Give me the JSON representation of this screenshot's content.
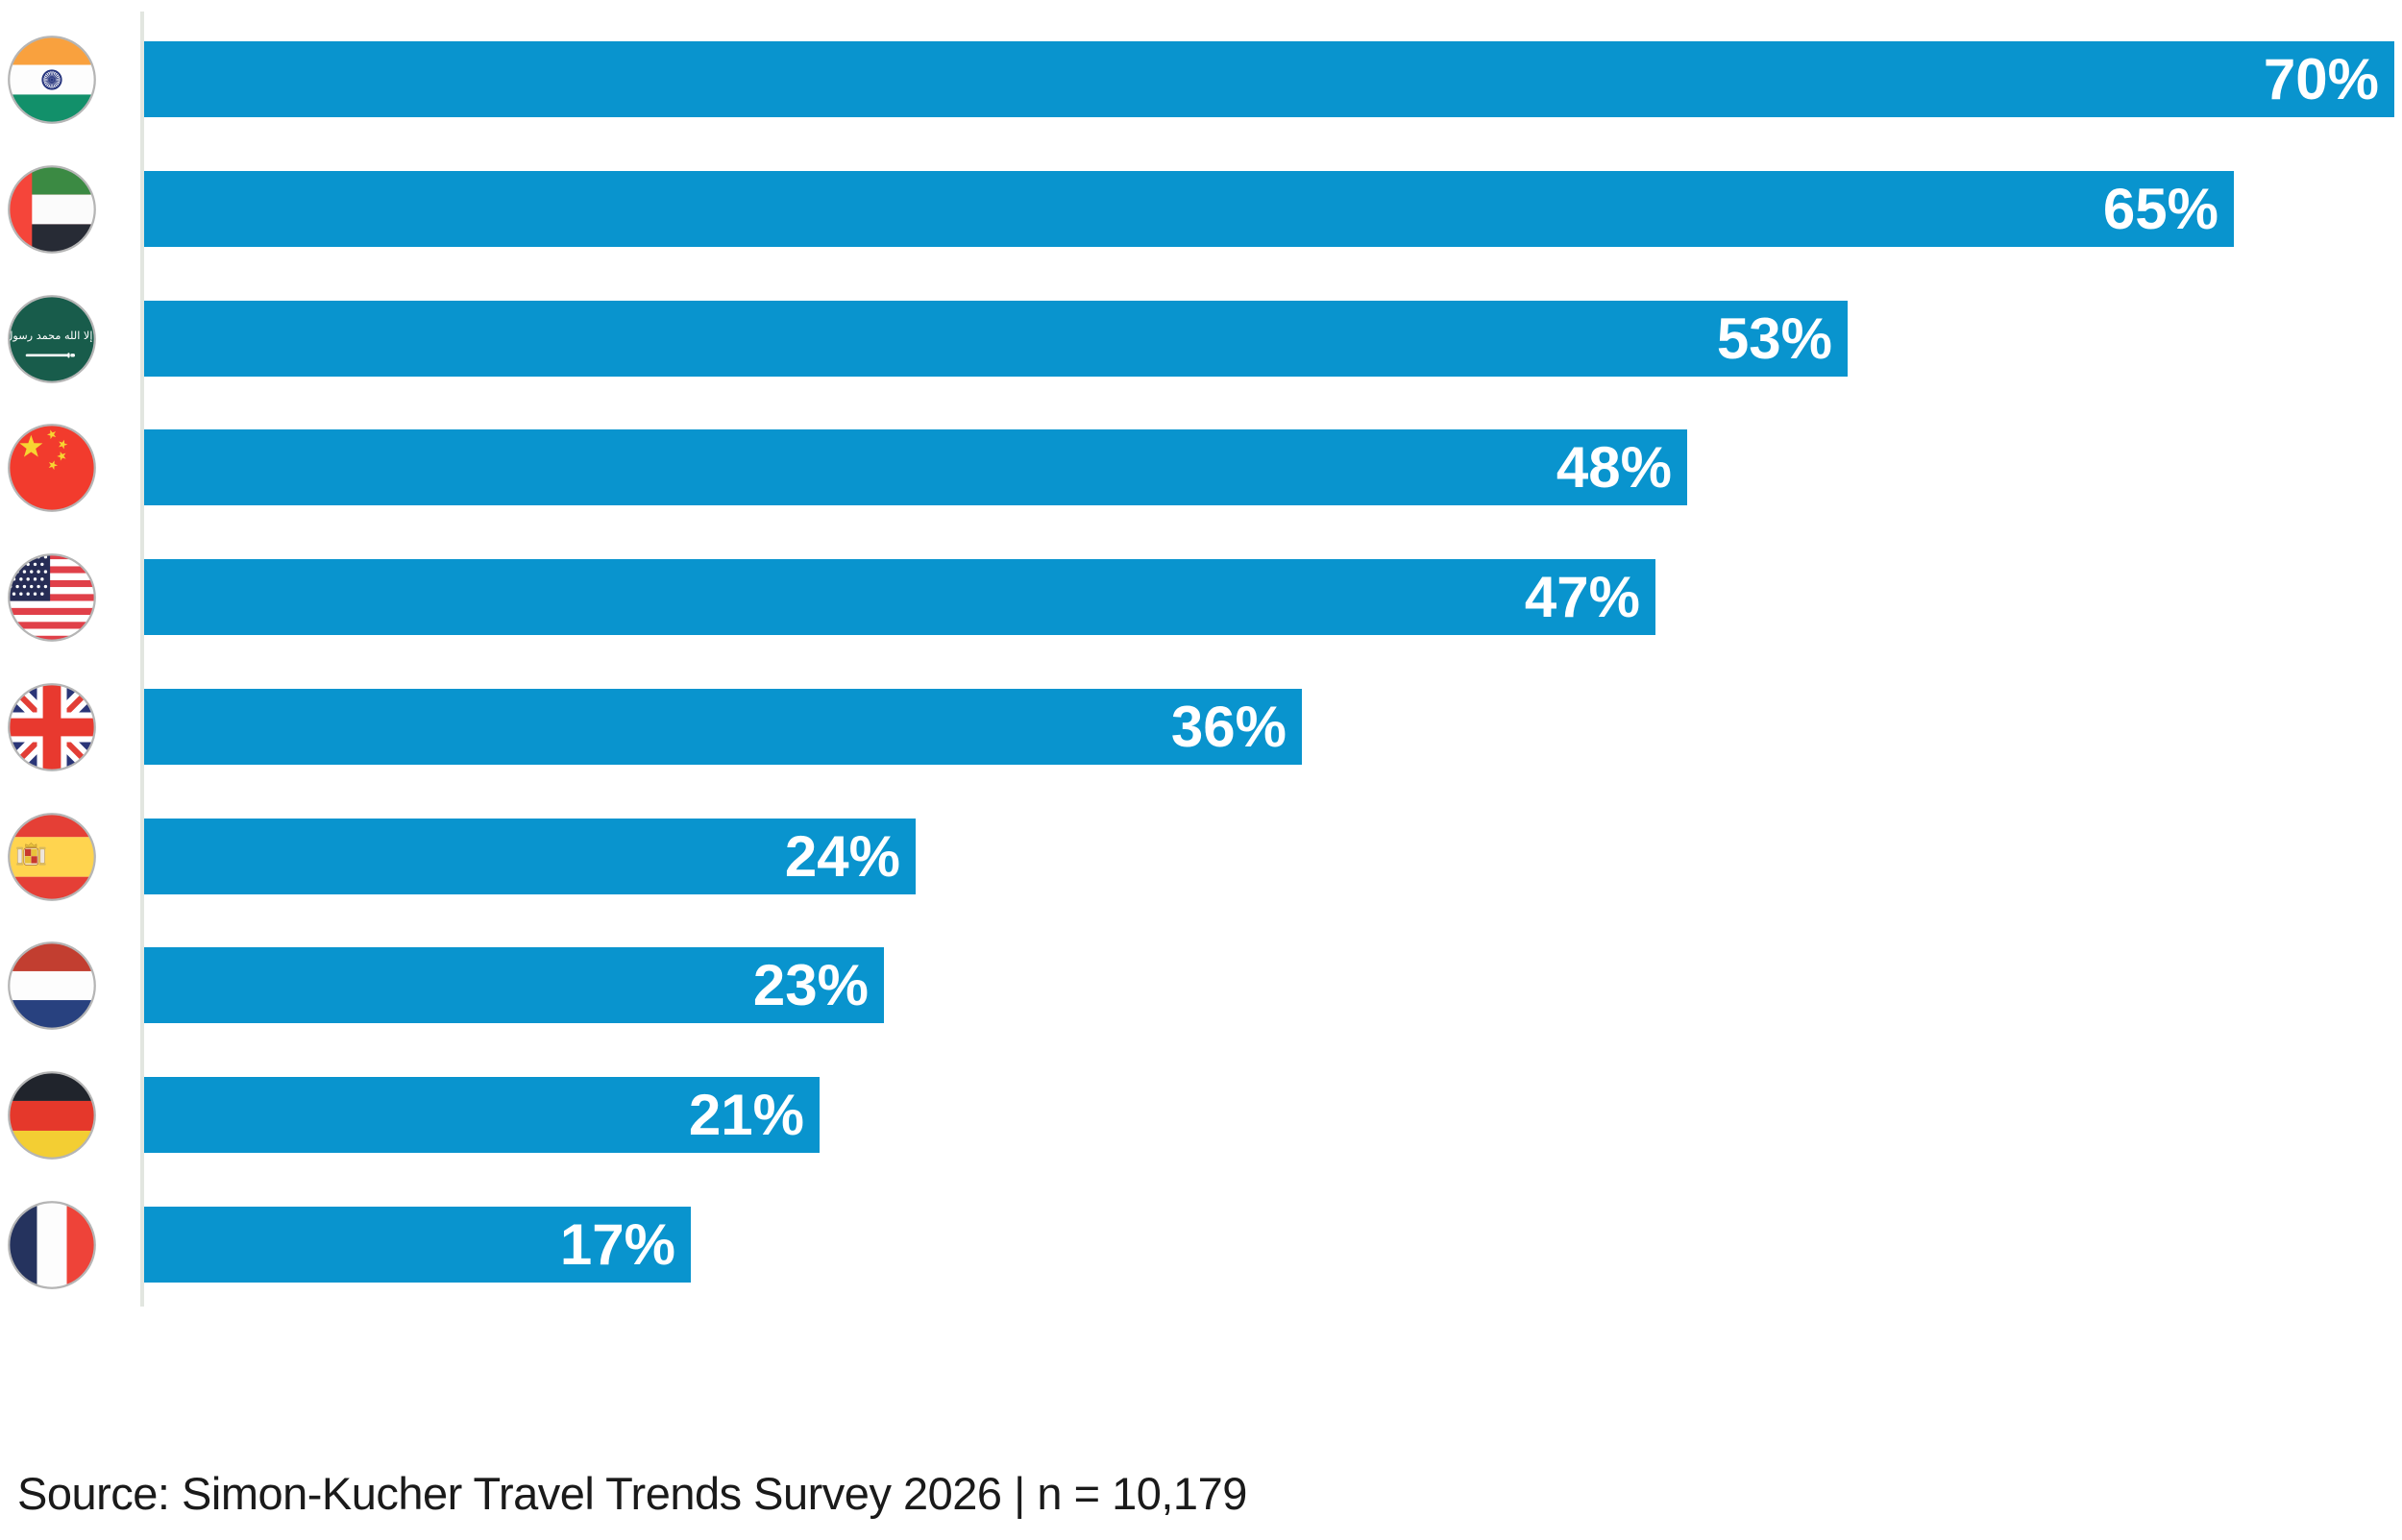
{
  "chart_data": {
    "type": "bar",
    "orientation": "horizontal",
    "title": "",
    "categories": [
      "India",
      "United Arab Emirates",
      "Saudi Arabia",
      "China",
      "United States",
      "United Kingdom",
      "Spain",
      "Netherlands",
      "Germany",
      "France"
    ],
    "country_codes": [
      "in",
      "ae",
      "sa",
      "cn",
      "us",
      "gb",
      "es",
      "nl",
      "de",
      "fr"
    ],
    "values": [
      70,
      65,
      53,
      48,
      47,
      36,
      24,
      23,
      21,
      17
    ],
    "value_labels": [
      "70%",
      "65%",
      "53%",
      "48%",
      "47%",
      "36%",
      "24%",
      "23%",
      "21%",
      "17%"
    ],
    "unit": "%",
    "xlim": [
      0,
      70
    ],
    "bar_color": "#0994CE",
    "value_label_color": "#FFFFFF",
    "axis_line_color": "#E2E6E0",
    "legend": "none",
    "gridlines": false
  },
  "icons": {
    "flag_icons": [
      "flag-india-icon",
      "flag-uae-icon",
      "flag-saudi-arabia-icon",
      "flag-china-icon",
      "flag-usa-icon",
      "flag-uk-icon",
      "flag-spain-icon",
      "flag-netherlands-icon",
      "flag-germany-icon",
      "flag-france-icon"
    ]
  },
  "footer": {
    "source_text": "Source: Simon-Kucher Travel Trends Survey 2026 | n = 10,179"
  }
}
